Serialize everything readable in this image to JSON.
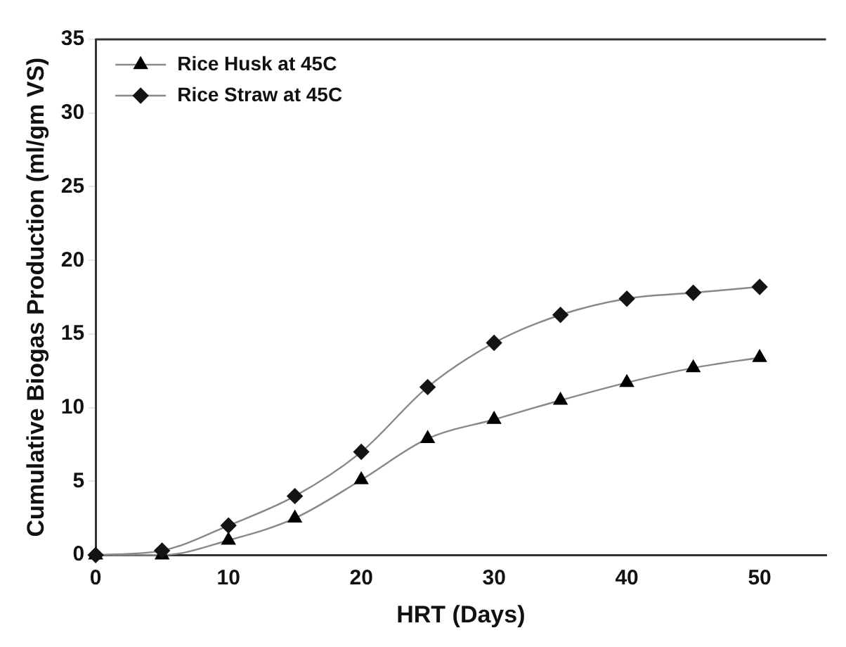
{
  "chart_data": {
    "type": "line",
    "xlabel": "HRT (Days)",
    "ylabel": "Cumulative Biogas Production (ml/gm VS)",
    "x": [
      0,
      5,
      10,
      15,
      20,
      25,
      30,
      35,
      40,
      45,
      50
    ],
    "series": [
      {
        "name": "Rice Husk at 45C",
        "color": "#000000",
        "marker": "triangle",
        "values": [
          0,
          0,
          1,
          2.5,
          5.1,
          7.9,
          9.2,
          10.5,
          11.7,
          12.7,
          13.4
        ]
      },
      {
        "name": "Rice Straw at 45C",
        "color": "#141414",
        "marker": "diamond",
        "values": [
          0,
          0.3,
          2,
          4,
          7,
          11.4,
          14.4,
          16.3,
          17.4,
          17.8,
          18.2
        ]
      }
    ],
    "xlim": [
      0,
      55
    ],
    "xticks": [
      0,
      10,
      20,
      30,
      40,
      50
    ],
    "ylim": [
      0,
      35
    ],
    "yticks": [
      0,
      5,
      10,
      15,
      20,
      25,
      30,
      35
    ],
    "grid": false,
    "legend": "top left"
  }
}
